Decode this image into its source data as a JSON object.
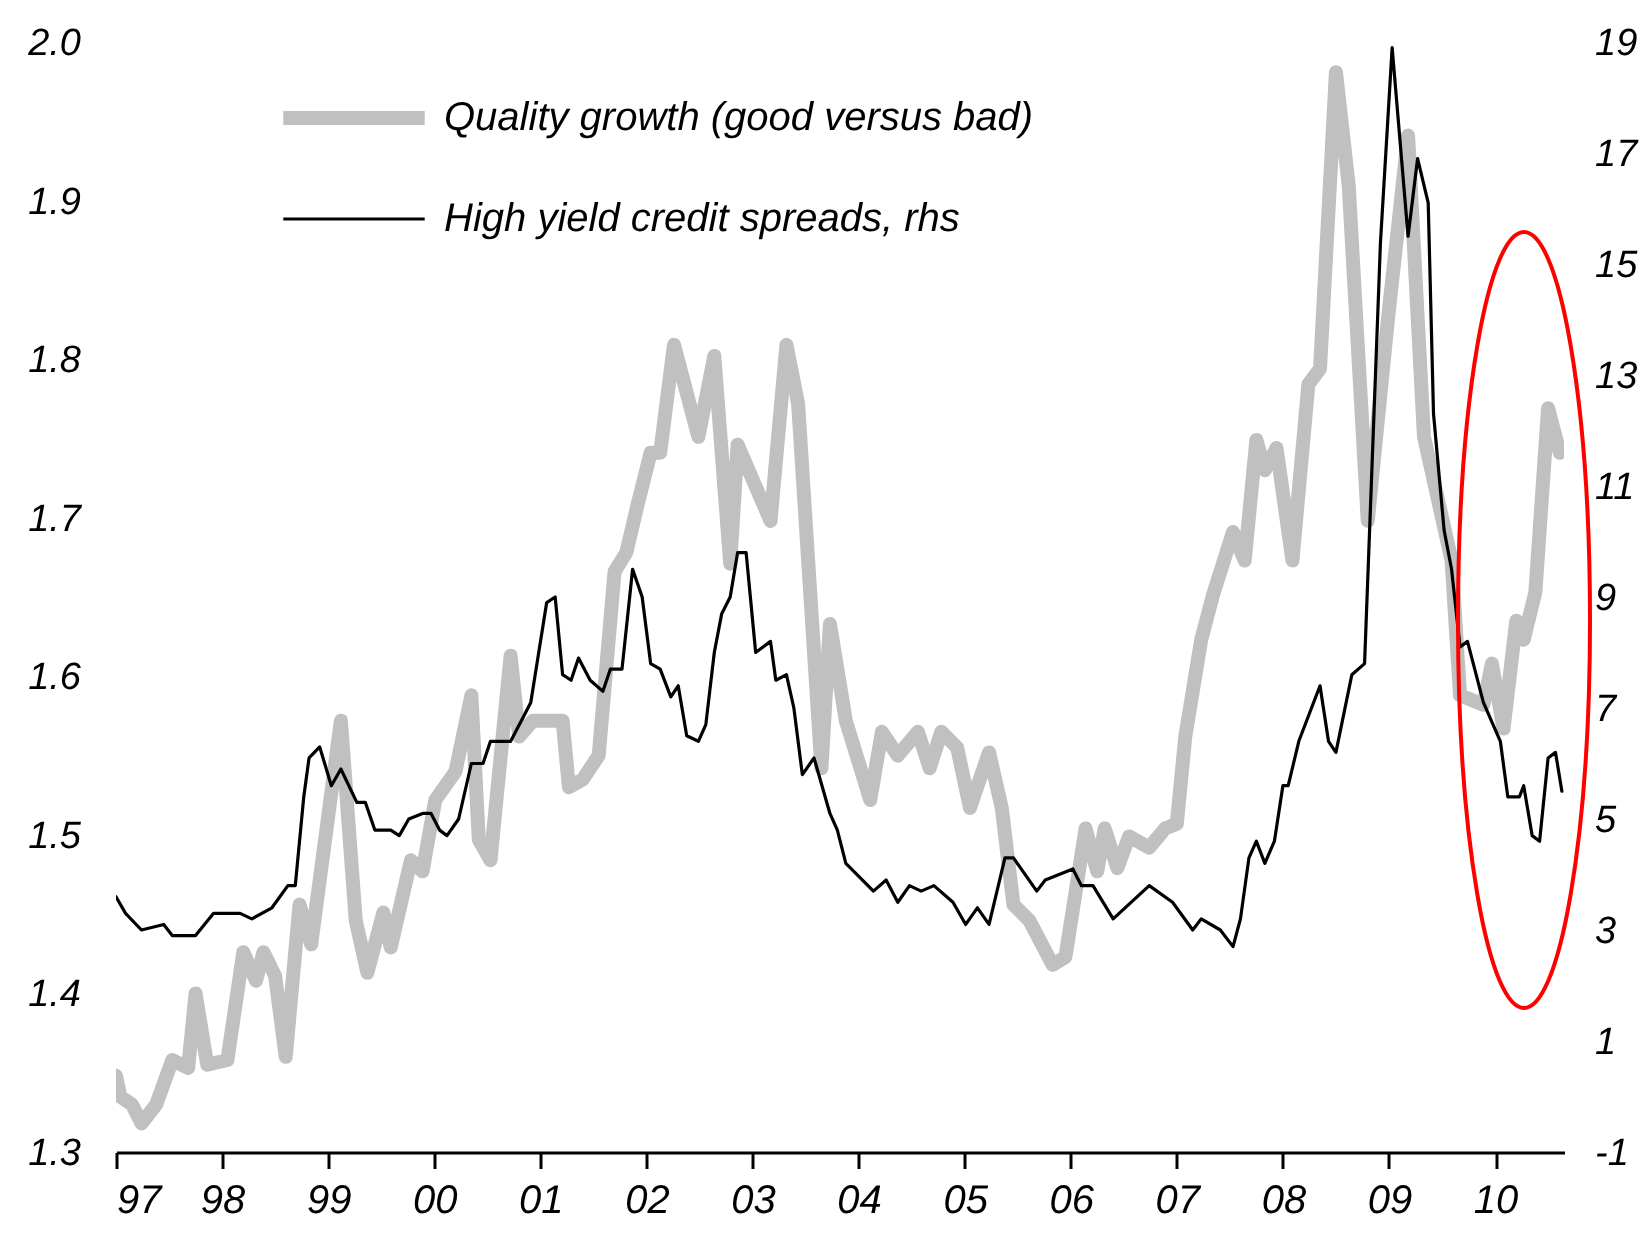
{
  "chart_data": {
    "type": "line",
    "legend": "top left",
    "xlim": [
      1997,
      2010.65
    ],
    "xticks": [
      {
        "value": 1997,
        "label": "97"
      },
      {
        "value": 1998,
        "label": "98"
      },
      {
        "value": 1999,
        "label": "99"
      },
      {
        "value": 2000,
        "label": "00"
      },
      {
        "value": 2001,
        "label": "01"
      },
      {
        "value": 2002,
        "label": "02"
      },
      {
        "value": 2003,
        "label": "03"
      },
      {
        "value": 2004,
        "label": "04"
      },
      {
        "value": 2005,
        "label": "05"
      },
      {
        "value": 2006,
        "label": "06"
      },
      {
        "value": 2007,
        "label": "07"
      },
      {
        "value": 2008,
        "label": "08"
      },
      {
        "value": 2009,
        "label": "09"
      },
      {
        "value": 2010,
        "label": "10"
      }
    ],
    "ylim": [
      1.3,
      2.0
    ],
    "yticks": [
      {
        "value": 1.3,
        "label": "1.3"
      },
      {
        "value": 1.4,
        "label": "1.4"
      },
      {
        "value": 1.5,
        "label": "1.5"
      },
      {
        "value": 1.6,
        "label": "1.6"
      },
      {
        "value": 1.7,
        "label": "1.7"
      },
      {
        "value": 1.8,
        "label": "1.8"
      },
      {
        "value": 1.9,
        "label": "1.9"
      },
      {
        "value": 2.0,
        "label": "2.0"
      }
    ],
    "y2lim": [
      -1,
      19
    ],
    "y2ticks": [
      -1,
      1,
      3,
      5,
      7,
      9,
      11,
      13,
      15,
      17,
      19
    ],
    "series": [
      {
        "name": "Quality growth (good versus bad)",
        "color": "#c0c0c0",
        "x": [
          1997.0,
          1997.04,
          1997.15,
          1997.24,
          1997.38,
          1997.53,
          1997.68,
          1997.75,
          1997.86,
          1998.05,
          1998.2,
          1998.32,
          1998.39,
          1998.5,
          1998.6,
          1998.73,
          1998.84,
          1999.12,
          1999.26,
          1999.37,
          1999.52,
          1999.59,
          1999.78,
          1999.89,
          2000.01,
          2000.2,
          2000.35,
          2000.42,
          2000.53,
          2000.72,
          2000.8,
          2000.93,
          2001.21,
          2001.27,
          2001.4,
          2001.55,
          2001.7,
          2001.81,
          2001.92,
          2002.04,
          2002.13,
          2002.26,
          2002.49,
          2002.64,
          2002.79,
          2002.86,
          2003.17,
          2003.32,
          2003.43,
          2003.65,
          2003.73,
          2003.88,
          2004.11,
          2004.22,
          2004.37,
          2004.56,
          2004.67,
          2004.78,
          2004.93,
          2005.05,
          2005.23,
          2005.35,
          2005.46,
          2005.61,
          2005.83,
          2005.95,
          2006.14,
          2006.25,
          2006.32,
          2006.44,
          2006.55,
          2006.74,
          2006.89,
          2007.0,
          2007.08,
          2007.23,
          2007.34,
          2007.53,
          2007.64,
          2007.75,
          2007.83,
          2007.94,
          2008.09,
          2008.24,
          2008.35,
          2008.5,
          2008.62,
          2008.8,
          2008.99,
          2009.18,
          2009.33,
          2009.59,
          2009.67,
          2009.89,
          2009.97,
          2010.08,
          2010.2,
          2010.27,
          2010.38,
          2010.5,
          2010.61
        ],
        "values": [
          1.348,
          1.335,
          1.33,
          1.318,
          1.33,
          1.358,
          1.353,
          1.4,
          1.355,
          1.358,
          1.426,
          1.408,
          1.426,
          1.411,
          1.36,
          1.456,
          1.431,
          1.572,
          1.446,
          1.413,
          1.451,
          1.429,
          1.484,
          1.477,
          1.522,
          1.54,
          1.588,
          1.497,
          1.484,
          1.613,
          1.562,
          1.572,
          1.572,
          1.53,
          1.535,
          1.55,
          1.666,
          1.678,
          1.709,
          1.741,
          1.741,
          1.809,
          1.751,
          1.802,
          1.671,
          1.746,
          1.698,
          1.809,
          1.772,
          1.542,
          1.633,
          1.572,
          1.522,
          1.565,
          1.55,
          1.565,
          1.542,
          1.565,
          1.555,
          1.517,
          1.552,
          1.517,
          1.456,
          1.446,
          1.418,
          1.423,
          1.504,
          1.477,
          1.504,
          1.479,
          1.499,
          1.492,
          1.504,
          1.507,
          1.562,
          1.623,
          1.651,
          1.691,
          1.673,
          1.749,
          1.73,
          1.744,
          1.673,
          1.784,
          1.794,
          1.981,
          1.91,
          1.698,
          1.825,
          1.941,
          1.751,
          1.673,
          1.588,
          1.582,
          1.608,
          1.567,
          1.635,
          1.623,
          1.653,
          1.769,
          1.741
        ]
      },
      {
        "name": "High yield credit spreads, rhs",
        "color": "#000000",
        "axis": "y2",
        "x": [
          1997.0,
          1997.09,
          1997.24,
          1997.45,
          1997.53,
          1997.75,
          1997.92,
          1998.17,
          1998.28,
          1998.47,
          1998.62,
          1998.69,
          1998.77,
          1998.82,
          1998.92,
          1999.03,
          1999.12,
          1999.27,
          1999.35,
          1999.44,
          1999.59,
          1999.67,
          1999.76,
          1999.89,
          1999.97,
          2000.05,
          2000.12,
          2000.23,
          2000.35,
          2000.46,
          2000.53,
          2000.72,
          2000.83,
          2000.91,
          2001.06,
          2001.14,
          2001.21,
          2001.29,
          2001.36,
          2001.47,
          2001.59,
          2001.66,
          2001.77,
          2001.87,
          2001.96,
          2002.04,
          2002.13,
          2002.23,
          2002.3,
          2002.38,
          2002.49,
          2002.56,
          2002.64,
          2002.71,
          2002.79,
          2002.86,
          2002.94,
          2003.03,
          2003.17,
          2003.22,
          2003.32,
          2003.39,
          2003.47,
          2003.58,
          2003.73,
          2003.8,
          2003.88,
          2004.14,
          2004.26,
          2004.37,
          2004.48,
          2004.59,
          2004.71,
          2004.89,
          2005.01,
          2005.12,
          2005.23,
          2005.38,
          2005.46,
          2005.68,
          2005.76,
          2006.02,
          2006.1,
          2006.21,
          2006.4,
          2006.74,
          2006.96,
          2007.15,
          2007.23,
          2007.41,
          2007.53,
          2007.6,
          2007.68,
          2007.75,
          2007.83,
          2007.92,
          2008.0,
          2008.05,
          2008.15,
          2008.35,
          2008.43,
          2008.5,
          2008.65,
          2008.77,
          2008.92,
          2009.03,
          2009.18,
          2009.27,
          2009.37,
          2009.42,
          2009.52,
          2009.59,
          2009.67,
          2009.74,
          2009.89,
          2010.05,
          2010.12,
          2010.23,
          2010.27,
          2010.35,
          2010.42,
          2010.5,
          2010.57,
          2010.63
        ],
        "values": [
          3.6,
          3.3,
          3.0,
          3.1,
          2.9,
          2.9,
          3.3,
          3.3,
          3.2,
          3.4,
          3.8,
          3.8,
          5.4,
          6.1,
          6.3,
          5.6,
          5.9,
          5.3,
          5.3,
          4.8,
          4.8,
          4.7,
          5.0,
          5.1,
          5.1,
          4.8,
          4.7,
          5.0,
          6.0,
          6.0,
          6.4,
          6.4,
          6.8,
          7.1,
          8.9,
          9.0,
          7.6,
          7.5,
          7.9,
          7.5,
          7.3,
          7.7,
          7.7,
          9.5,
          9.0,
          7.8,
          7.7,
          7.2,
          7.4,
          6.5,
          6.4,
          6.7,
          8.0,
          8.7,
          9.0,
          9.8,
          9.8,
          8.0,
          8.2,
          7.5,
          7.6,
          7.0,
          5.8,
          6.1,
          5.1,
          4.8,
          4.2,
          3.7,
          3.9,
          3.5,
          3.8,
          3.7,
          3.8,
          3.5,
          3.1,
          3.4,
          3.1,
          4.3,
          4.3,
          3.7,
          3.9,
          4.1,
          3.8,
          3.8,
          3.2,
          3.8,
          3.5,
          3.0,
          3.2,
          3.0,
          2.7,
          3.2,
          4.3,
          4.6,
          4.2,
          4.6,
          5.6,
          5.6,
          6.4,
          7.4,
          6.4,
          6.2,
          7.6,
          7.8,
          15.4,
          18.9,
          15.5,
          16.9,
          16.1,
          12.3,
          10.2,
          9.5,
          8.1,
          8.2,
          7.1,
          6.4,
          5.4,
          5.4,
          5.6,
          4.7,
          4.6,
          6.1,
          6.2,
          5.5
        ]
      }
    ]
  }
}
